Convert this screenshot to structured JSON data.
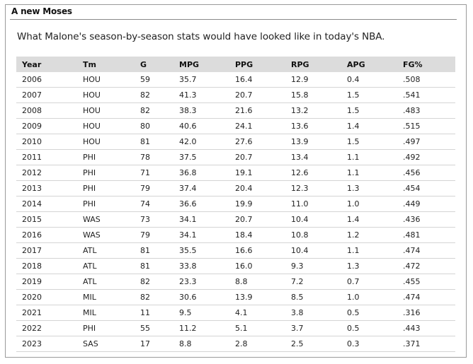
{
  "box": {
    "title": "A new Moses",
    "subtitle": "What Malone's season-by-season stats would have looked like in today's NBA."
  },
  "table": {
    "headers": [
      "Year",
      "Tm",
      "G",
      "MPG",
      "PPG",
      "RPG",
      "APG",
      "FG%"
    ],
    "rows": [
      [
        "2006",
        "HOU",
        "59",
        "35.7",
        "16.4",
        "12.9",
        "0.4",
        ".508"
      ],
      [
        "2007",
        "HOU",
        "82",
        "41.3",
        "20.7",
        "15.8",
        "1.5",
        ".541"
      ],
      [
        "2008",
        "HOU",
        "82",
        "38.3",
        "21.6",
        "13.2",
        "1.5",
        ".483"
      ],
      [
        "2009",
        "HOU",
        "80",
        "40.6",
        "24.1",
        "13.6",
        "1.4",
        ".515"
      ],
      [
        "2010",
        "HOU",
        "81",
        "42.0",
        "27.6",
        "13.9",
        "1.5",
        ".497"
      ],
      [
        "2011",
        "PHI",
        "78",
        "37.5",
        "20.7",
        "13.4",
        "1.1",
        ".492"
      ],
      [
        "2012",
        "PHI",
        "71",
        "36.8",
        "19.1",
        "12.6",
        "1.1",
        ".456"
      ],
      [
        "2013",
        "PHI",
        "79",
        "37.4",
        "20.4",
        "12.3",
        "1.3",
        ".454"
      ],
      [
        "2014",
        "PHI",
        "74",
        "36.6",
        "19.9",
        "11.0",
        "1.0",
        ".449"
      ],
      [
        "2015",
        "WAS",
        "73",
        "34.1",
        "20.7",
        "10.4",
        "1.4",
        ".436"
      ],
      [
        "2016",
        "WAS",
        "79",
        "34.1",
        "18.4",
        "10.8",
        "1.2",
        ".481"
      ],
      [
        "2017",
        "ATL",
        "81",
        "35.5",
        "16.6",
        "10.4",
        "1.1",
        ".474"
      ],
      [
        "2018",
        "ATL",
        "81",
        "33.8",
        "16.0",
        "9.3",
        "1.3",
        ".472"
      ],
      [
        "2019",
        "ATL",
        "82",
        "23.3",
        "8.8",
        "7.2",
        "0.7",
        ".455"
      ],
      [
        "2020",
        "MIL",
        "82",
        "30.6",
        "13.9",
        "8.5",
        "1.0",
        ".474"
      ],
      [
        "2021",
        "MIL",
        "11",
        "9.5",
        "4.1",
        "3.8",
        "0.5",
        ".316"
      ],
      [
        "2022",
        "PHI",
        "55",
        "11.2",
        "5.1",
        "3.7",
        "0.5",
        ".443"
      ],
      [
        "2023",
        "SAS",
        "17",
        "8.8",
        "2.8",
        "2.5",
        "0.3",
        ".371"
      ]
    ]
  }
}
